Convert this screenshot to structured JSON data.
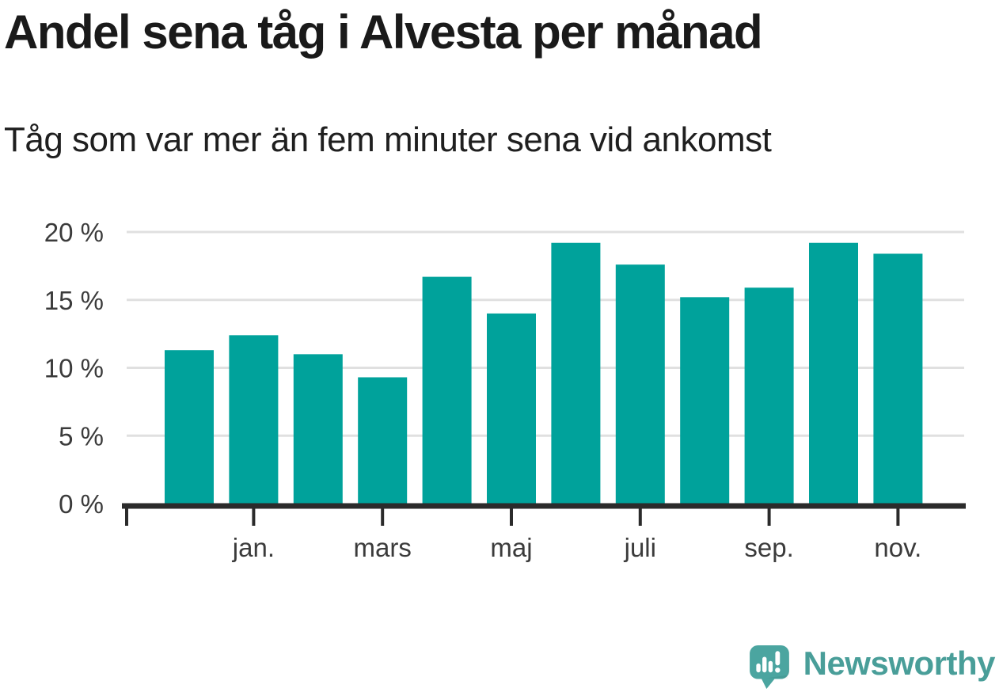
{
  "header": {
    "title": "Andel sena tåg i Alvesta per månad",
    "subtitle": "Tåg som var mer än fem minuter sena vid ankomst"
  },
  "chart_data": {
    "type": "bar",
    "title": "Andel sena tåg i Alvesta per månad",
    "subtitle": "Tåg som var mer än fem minuter sena vid ankomst",
    "unit": "percent",
    "bar_count": 12,
    "values": [
      11.3,
      12.4,
      11.0,
      9.3,
      16.7,
      14.0,
      19.2,
      17.6,
      15.2,
      15.9,
      19.2,
      18.4
    ],
    "x_tick_labels": [
      "jan.",
      "mars",
      "maj",
      "juli",
      "sep.",
      "nov."
    ],
    "x_tick_bar_indices": [
      1,
      3,
      5,
      7,
      9,
      11
    ],
    "y_ticks": [
      0,
      5,
      10,
      15,
      20
    ],
    "y_tick_labels": [
      "0 %",
      "5 %",
      "10 %",
      "15 %",
      "20 %"
    ],
    "ylim": [
      0,
      20
    ],
    "grid": "horizontal",
    "legend": "none",
    "bar_color": "#00a29b"
  },
  "branding": {
    "logo_text": "Newsworthy",
    "logo_text_color": "#499e99",
    "logo_mark_color": "#4ba5a0"
  }
}
